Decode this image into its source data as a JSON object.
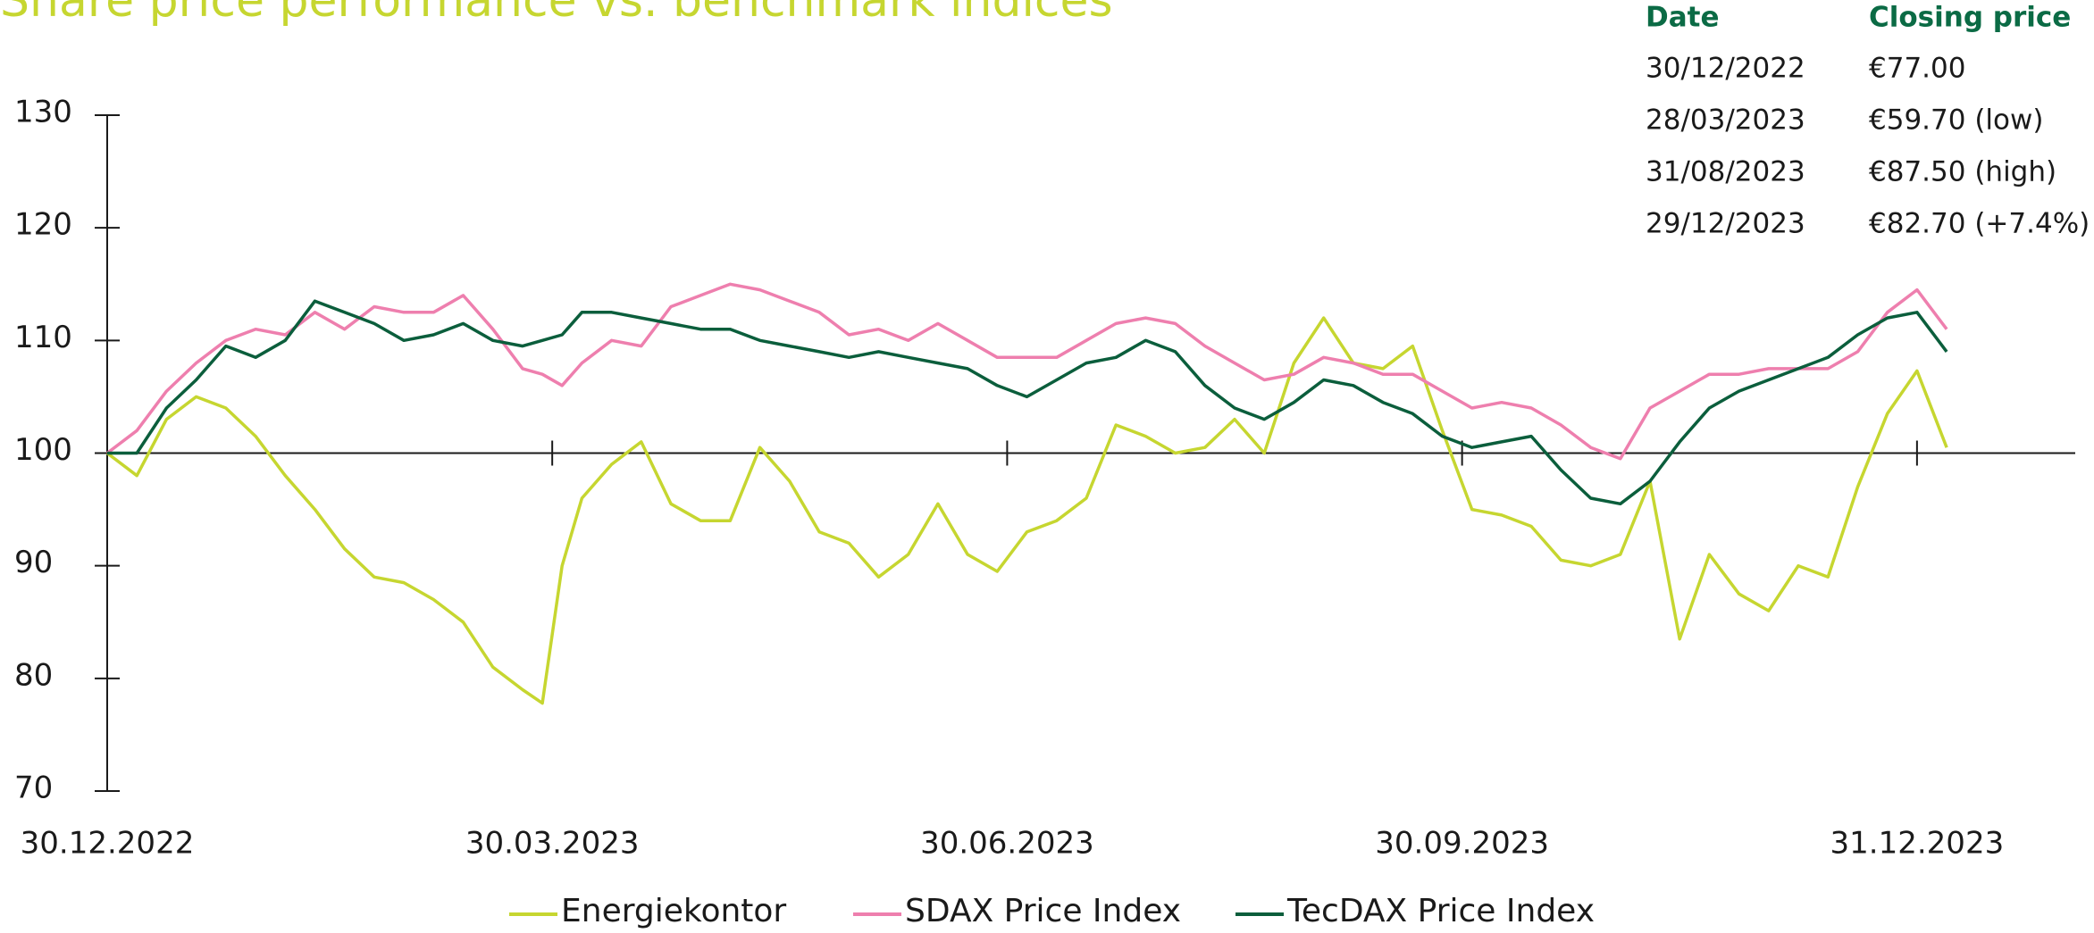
{
  "chart_data": {
    "type": "line",
    "title": "Share price performance vs. benchmark indices",
    "x": [
      0,
      6,
      12,
      18,
      24,
      30,
      36,
      42,
      48,
      54,
      60,
      66,
      72,
      78,
      84,
      88,
      92,
      96,
      102,
      108,
      114,
      120,
      126,
      132,
      138,
      144,
      150,
      156,
      162,
      168,
      174,
      180,
      186,
      192,
      198,
      204,
      210,
      216,
      222,
      228,
      234,
      240,
      246,
      252,
      258,
      264,
      270,
      276,
      282,
      288,
      294,
      300,
      306,
      312,
      318,
      324,
      330,
      336,
      342,
      348,
      354,
      360,
      366,
      372
    ],
    "xlim": [
      0,
      398
    ],
    "xticks": [
      {
        "value": 0,
        "label": "30.12.2022"
      },
      {
        "value": 90,
        "label": "30.03.2023"
      },
      {
        "value": 182,
        "label": "30.06.2023"
      },
      {
        "value": 274,
        "label": "30.09.2023"
      },
      {
        "value": 366,
        "label": "31.12.2023"
      }
    ],
    "ylim": [
      70,
      130
    ],
    "yticks": [
      70,
      80,
      90,
      100,
      110,
      120,
      130
    ],
    "baseline": 100,
    "series": [
      {
        "name": "Energiekontor",
        "color": "#c6d630",
        "values": [
          100,
          98,
          103,
          105,
          104,
          101.5,
          98,
          95,
          91.5,
          89,
          88.5,
          87,
          85,
          81,
          79,
          77.8,
          90,
          96,
          99,
          101,
          95.5,
          94,
          94,
          100.5,
          97.5,
          93,
          92,
          89,
          91,
          95.5,
          91,
          89.5,
          93,
          94,
          96,
          102.5,
          101.5,
          100,
          100.5,
          103,
          100,
          108,
          112,
          108,
          107.5,
          109.5,
          102,
          95,
          94.5,
          93.5,
          90.5,
          90,
          91,
          97.5,
          83.5,
          91,
          87.5,
          86,
          90,
          89,
          97,
          103.5,
          107.3,
          100.5
        ]
      },
      {
        "name": "SDAX Price Index",
        "color": "#ee7fae",
        "values": [
          100,
          102,
          105.5,
          108,
          110,
          111,
          110.5,
          112.5,
          111,
          113,
          112.5,
          112.5,
          114,
          111,
          107.5,
          107,
          106,
          108,
          110,
          109.5,
          113,
          114,
          115,
          114.5,
          113.5,
          112.5,
          110.5,
          111,
          110,
          111.5,
          110,
          108.5,
          108.5,
          108.5,
          110,
          111.5,
          112,
          111.5,
          109.5,
          108,
          106.5,
          107,
          108.5,
          108,
          107,
          107,
          105.5,
          104,
          104.5,
          104,
          102.5,
          100.5,
          99.5,
          104,
          105.5,
          107,
          107,
          107.5,
          107.5,
          107.5,
          109,
          112.5,
          114.5,
          111
        ]
      },
      {
        "name": "TecDAX Price Index",
        "color": "#0b5e3c",
        "values": [
          100,
          100,
          104,
          106.5,
          109.5,
          108.5,
          110,
          113.5,
          112.5,
          111.5,
          110,
          110.5,
          111.5,
          110,
          109.5,
          110,
          110.5,
          112.5,
          112.5,
          112,
          111.5,
          111,
          111,
          110,
          109.5,
          109,
          108.5,
          109,
          108.5,
          108,
          107.5,
          106,
          105,
          106.5,
          108,
          108.5,
          110,
          109,
          106,
          104,
          103,
          104.5,
          106.5,
          106,
          104.5,
          103.5,
          101.5,
          100.5,
          101,
          101.5,
          98.5,
          96,
          95.5,
          97.5,
          101,
          104,
          105.5,
          106.5,
          107.5,
          108.5,
          110.5,
          112,
          112.5,
          109
        ]
      }
    ]
  },
  "table": {
    "headers": [
      "Date",
      "Closing price"
    ],
    "rows": [
      [
        "30/12/2022",
        "€77.00"
      ],
      [
        "28/03/2023",
        "€59.70 (low)"
      ],
      [
        "31/08/2023",
        "€87.50 (high)"
      ],
      [
        "29/12/2023",
        "€82.70 (+7.4%)"
      ]
    ]
  }
}
